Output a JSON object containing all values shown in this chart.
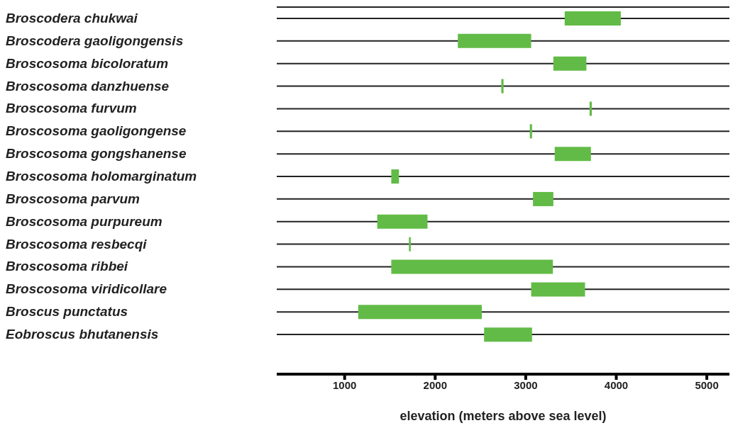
{
  "chart_data": {
    "type": "bar",
    "orientation": "horizontal",
    "xlabel": "elevation (meters above sea level)",
    "categories": [
      "Broscodera chukwai",
      "Broscodera gaoligongensis",
      "Broscosoma bicoloratum",
      "Broscosoma danzhuense",
      "Broscosoma furvum",
      "Broscosoma gaoligongense",
      "Broscosoma gongshanense",
      "Broscosoma holomarginatum",
      "Broscosoma parvum",
      "Broscosoma purpureum",
      "Broscosoma resbecqi",
      "Broscosoma ribbei",
      "Broscosoma viridicollare",
      "Broscus punctatus",
      "Eobroscus bhutanensis"
    ],
    "base": [
      3430,
      2250,
      3305,
      2730,
      3705,
      3045,
      3320,
      1515,
      3080,
      1360,
      1710,
      1515,
      3060,
      1150,
      2540
    ],
    "values": [
      620,
      810,
      365,
      25,
      25,
      25,
      400,
      85,
      225,
      555,
      20,
      1785,
      595,
      1365,
      530
    ],
    "color": "#62bb46",
    "xlim": [
      250,
      5250
    ],
    "xticks": [
      1000,
      2000,
      3000,
      4000,
      5000
    ],
    "grid": "y"
  }
}
